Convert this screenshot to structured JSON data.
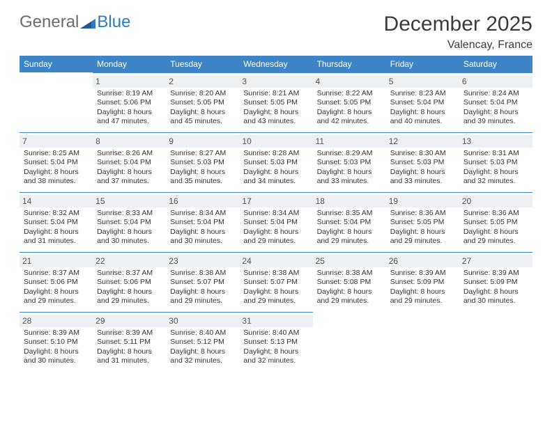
{
  "brand": {
    "general": "General",
    "blue": "Blue"
  },
  "title": "December 2025",
  "location": "Valencay, France",
  "colors": {
    "accent": "#3d85c6",
    "dayHeaderBg": "#eef1f3",
    "text": "#333333",
    "pageBg": "#ffffff"
  },
  "weekdays": [
    "Sunday",
    "Monday",
    "Tuesday",
    "Wednesday",
    "Thursday",
    "Friday",
    "Saturday"
  ],
  "grid": {
    "rows": 5,
    "cols": 7,
    "startCol": 1,
    "daysInMonth": 31
  },
  "days": {
    "1": {
      "sunrise": "8:19 AM",
      "sunset": "5:06 PM",
      "daylight": "8 hours and 47 minutes."
    },
    "2": {
      "sunrise": "8:20 AM",
      "sunset": "5:05 PM",
      "daylight": "8 hours and 45 minutes."
    },
    "3": {
      "sunrise": "8:21 AM",
      "sunset": "5:05 PM",
      "daylight": "8 hours and 43 minutes."
    },
    "4": {
      "sunrise": "8:22 AM",
      "sunset": "5:05 PM",
      "daylight": "8 hours and 42 minutes."
    },
    "5": {
      "sunrise": "8:23 AM",
      "sunset": "5:04 PM",
      "daylight": "8 hours and 40 minutes."
    },
    "6": {
      "sunrise": "8:24 AM",
      "sunset": "5:04 PM",
      "daylight": "8 hours and 39 minutes."
    },
    "7": {
      "sunrise": "8:25 AM",
      "sunset": "5:04 PM",
      "daylight": "8 hours and 38 minutes."
    },
    "8": {
      "sunrise": "8:26 AM",
      "sunset": "5:04 PM",
      "daylight": "8 hours and 37 minutes."
    },
    "9": {
      "sunrise": "8:27 AM",
      "sunset": "5:03 PM",
      "daylight": "8 hours and 35 minutes."
    },
    "10": {
      "sunrise": "8:28 AM",
      "sunset": "5:03 PM",
      "daylight": "8 hours and 34 minutes."
    },
    "11": {
      "sunrise": "8:29 AM",
      "sunset": "5:03 PM",
      "daylight": "8 hours and 33 minutes."
    },
    "12": {
      "sunrise": "8:30 AM",
      "sunset": "5:03 PM",
      "daylight": "8 hours and 33 minutes."
    },
    "13": {
      "sunrise": "8:31 AM",
      "sunset": "5:03 PM",
      "daylight": "8 hours and 32 minutes."
    },
    "14": {
      "sunrise": "8:32 AM",
      "sunset": "5:04 PM",
      "daylight": "8 hours and 31 minutes."
    },
    "15": {
      "sunrise": "8:33 AM",
      "sunset": "5:04 PM",
      "daylight": "8 hours and 30 minutes."
    },
    "16": {
      "sunrise": "8:34 AM",
      "sunset": "5:04 PM",
      "daylight": "8 hours and 30 minutes."
    },
    "17": {
      "sunrise": "8:34 AM",
      "sunset": "5:04 PM",
      "daylight": "8 hours and 29 minutes."
    },
    "18": {
      "sunrise": "8:35 AM",
      "sunset": "5:04 PM",
      "daylight": "8 hours and 29 minutes."
    },
    "19": {
      "sunrise": "8:36 AM",
      "sunset": "5:05 PM",
      "daylight": "8 hours and 29 minutes."
    },
    "20": {
      "sunrise": "8:36 AM",
      "sunset": "5:05 PM",
      "daylight": "8 hours and 29 minutes."
    },
    "21": {
      "sunrise": "8:37 AM",
      "sunset": "5:06 PM",
      "daylight": "8 hours and 29 minutes."
    },
    "22": {
      "sunrise": "8:37 AM",
      "sunset": "5:06 PM",
      "daylight": "8 hours and 29 minutes."
    },
    "23": {
      "sunrise": "8:38 AM",
      "sunset": "5:07 PM",
      "daylight": "8 hours and 29 minutes."
    },
    "24": {
      "sunrise": "8:38 AM",
      "sunset": "5:07 PM",
      "daylight": "8 hours and 29 minutes."
    },
    "25": {
      "sunrise": "8:38 AM",
      "sunset": "5:08 PM",
      "daylight": "8 hours and 29 minutes."
    },
    "26": {
      "sunrise": "8:39 AM",
      "sunset": "5:09 PM",
      "daylight": "8 hours and 29 minutes."
    },
    "27": {
      "sunrise": "8:39 AM",
      "sunset": "5:09 PM",
      "daylight": "8 hours and 30 minutes."
    },
    "28": {
      "sunrise": "8:39 AM",
      "sunset": "5:10 PM",
      "daylight": "8 hours and 30 minutes."
    },
    "29": {
      "sunrise": "8:39 AM",
      "sunset": "5:11 PM",
      "daylight": "8 hours and 31 minutes."
    },
    "30": {
      "sunrise": "8:40 AM",
      "sunset": "5:12 PM",
      "daylight": "8 hours and 32 minutes."
    },
    "31": {
      "sunrise": "8:40 AM",
      "sunset": "5:13 PM",
      "daylight": "8 hours and 32 minutes."
    }
  },
  "labels": {
    "sunrise": "Sunrise: ",
    "sunset": "Sunset: ",
    "daylight": "Daylight: "
  }
}
